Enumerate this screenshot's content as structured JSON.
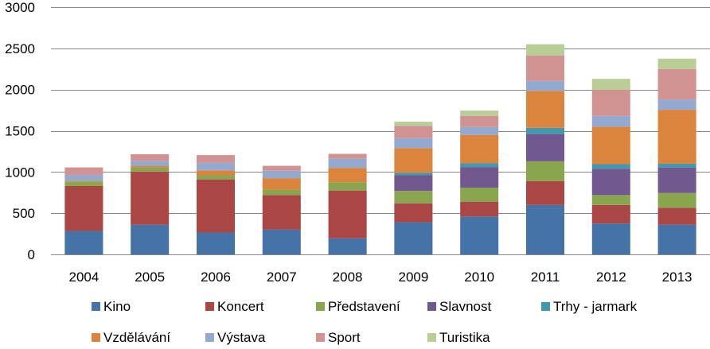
{
  "chart_data": {
    "type": "bar",
    "stacked": true,
    "categories": [
      "2004",
      "2005",
      "2006",
      "2007",
      "2008",
      "2009",
      "2010",
      "2011",
      "2012",
      "2013"
    ],
    "ylim": [
      0,
      3000
    ],
    "yticks": [
      0,
      500,
      1000,
      1500,
      2000,
      2500,
      3000
    ],
    "ytick_labels": [
      "0",
      "500",
      "1000",
      "1500",
      "2000",
      "2500",
      "3000"
    ],
    "grid": "horizontal",
    "legend_position": "bottom",
    "series": [
      {
        "name": "Kino",
        "color": "#4572A7",
        "values": [
          285,
          360,
          265,
          300,
          195,
          390,
          460,
          600,
          375,
          360
        ]
      },
      {
        "name": "Koncert",
        "color": "#AA4643",
        "values": [
          545,
          645,
          645,
          420,
          580,
          230,
          180,
          290,
          225,
          205
        ]
      },
      {
        "name": "Představení",
        "color": "#89A54E",
        "values": [
          55,
          50,
          50,
          65,
          100,
          150,
          170,
          240,
          120,
          180
        ]
      },
      {
        "name": "Slavnost",
        "color": "#71588F",
        "values": [
          0,
          0,
          0,
          0,
          0,
          190,
          250,
          330,
          320,
          310
        ]
      },
      {
        "name": "Trhy - jarmark",
        "color": "#4198AF",
        "values": [
          0,
          0,
          0,
          0,
          0,
          30,
          45,
          75,
          55,
          45
        ]
      },
      {
        "name": "Vzdělávání",
        "color": "#DB843D",
        "values": [
          10,
          20,
          60,
          140,
          175,
          300,
          345,
          450,
          455,
          655
        ]
      },
      {
        "name": "Výstava",
        "color": "#93A9CF",
        "values": [
          70,
          60,
          90,
          90,
          110,
          120,
          95,
          120,
          130,
          125
        ]
      },
      {
        "name": "Sport",
        "color": "#D19392",
        "values": [
          90,
          80,
          95,
          60,
          60,
          150,
          135,
          310,
          320,
          370
        ]
      },
      {
        "name": "Turistika",
        "color": "#B9CD96",
        "values": [
          0,
          0,
          0,
          0,
          0,
          50,
          65,
          135,
          130,
          125
        ]
      }
    ]
  }
}
